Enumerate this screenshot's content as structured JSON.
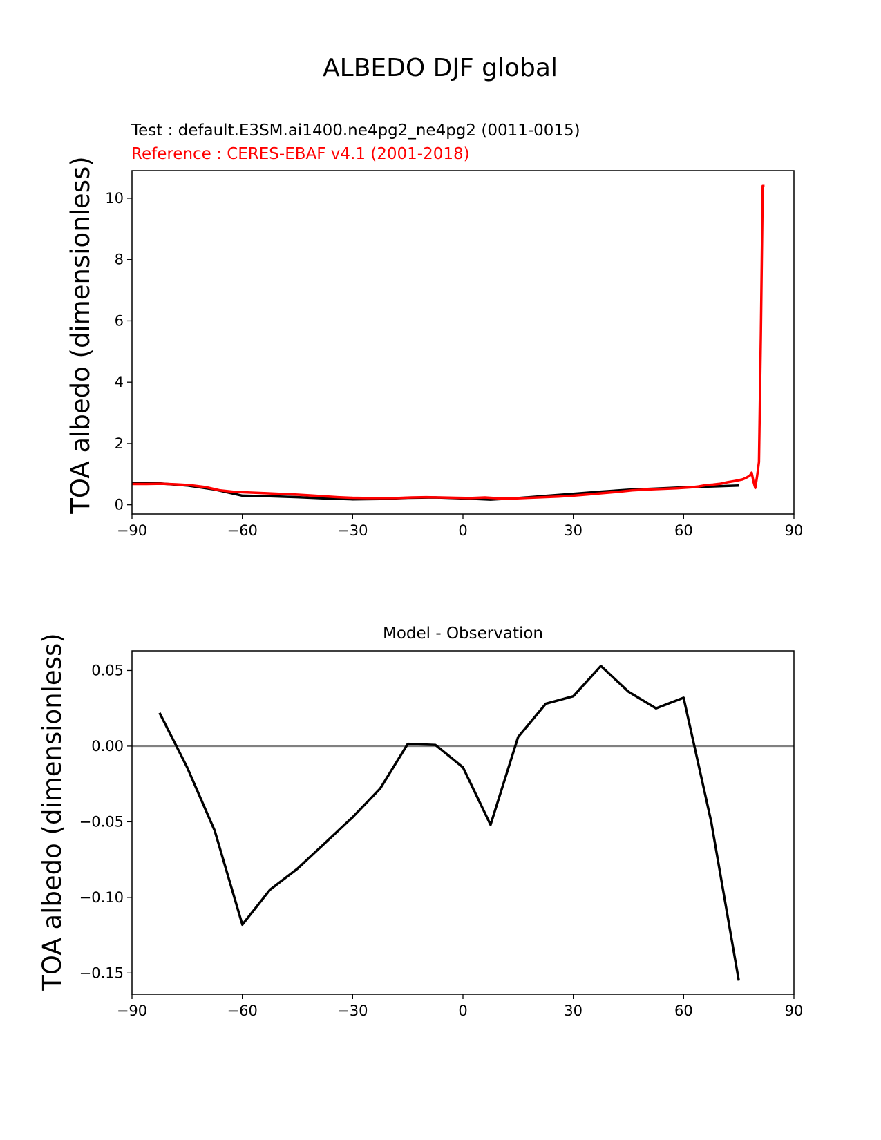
{
  "figure": {
    "suptitle": "ALBEDO DJF global",
    "colors": {
      "test": "#000000",
      "reference": "#ff0000",
      "zero_line": "#808080",
      "axes": "#000000"
    }
  },
  "chart_data": [
    {
      "type": "line",
      "test_label": "Test : default.E3SM.ai1400.ne4pg2_ne4pg2 (0011-0015)",
      "reference_label": "Reference : CERES-EBAF v4.1 (2001-2018)",
      "xlabel": "",
      "ylabel": "TOA albedo (dimensionless)",
      "xlim": [
        -90,
        90
      ],
      "ylim": [
        -0.3,
        10.9
      ],
      "xticks": [
        -90,
        -60,
        -30,
        0,
        30,
        60,
        90
      ],
      "xtick_labels": [
        "−90",
        "−60",
        "−30",
        "0",
        "30",
        "60",
        "90"
      ],
      "yticks": [
        0,
        2,
        4,
        6,
        8,
        10
      ],
      "ytick_labels": [
        "0",
        "2",
        "4",
        "6",
        "8",
        "10"
      ],
      "series": [
        {
          "name": "Test",
          "color": "#000000",
          "x": [
            -90,
            -82.5,
            -75,
            -67.5,
            -60,
            -52.5,
            -45,
            -37.5,
            -30,
            -22.5,
            -15,
            -7.5,
            0,
            7.5,
            15,
            22.5,
            30,
            37.5,
            45,
            52.5,
            60,
            67.5,
            75
          ],
          "y": [
            0.7,
            0.7,
            0.63,
            0.5,
            0.3,
            0.28,
            0.25,
            0.21,
            0.18,
            0.19,
            0.23,
            0.24,
            0.21,
            0.17,
            0.22,
            0.29,
            0.36,
            0.43,
            0.49,
            0.53,
            0.57,
            0.6,
            0.63
          ]
        },
        {
          "name": "Reference",
          "color": "#ff0000",
          "x": [
            -90,
            -86,
            -82,
            -78,
            -74,
            -70,
            -66,
            -62,
            -58,
            -54,
            -50,
            -46,
            -42,
            -38,
            -34,
            -30,
            -26,
            -22,
            -18,
            -14,
            -10,
            -6,
            -2,
            2,
            6,
            10,
            14,
            18,
            22,
            26,
            30,
            34,
            38,
            42,
            46,
            50,
            54,
            58,
            62,
            64,
            66,
            68,
            70,
            72,
            74,
            76,
            77,
            78,
            78.5,
            79,
            79.5,
            80,
            80.5,
            81,
            81.5,
            82
          ],
          "y": [
            0.68,
            0.68,
            0.69,
            0.67,
            0.64,
            0.58,
            0.47,
            0.42,
            0.4,
            0.38,
            0.36,
            0.34,
            0.31,
            0.28,
            0.25,
            0.23,
            0.22,
            0.22,
            0.22,
            0.24,
            0.25,
            0.24,
            0.23,
            0.22,
            0.24,
            0.21,
            0.21,
            0.23,
            0.25,
            0.27,
            0.3,
            0.34,
            0.38,
            0.42,
            0.47,
            0.5,
            0.52,
            0.54,
            0.57,
            0.6,
            0.64,
            0.66,
            0.69,
            0.74,
            0.78,
            0.83,
            0.88,
            0.95,
            1.05,
            0.75,
            0.55,
            0.95,
            1.4,
            5.5,
            10.4,
            10.4
          ]
        }
      ]
    },
    {
      "type": "line",
      "title": "Model - Observation",
      "xlabel": "",
      "ylabel": "TOA albedo (dimensionless)",
      "xlim": [
        -90,
        90
      ],
      "ylim": [
        -0.164,
        0.063
      ],
      "xticks": [
        -90,
        -60,
        -30,
        0,
        30,
        60,
        90
      ],
      "xtick_labels": [
        "−90",
        "−60",
        "−30",
        "0",
        "30",
        "60",
        "90"
      ],
      "yticks": [
        0.05,
        0.0,
        -0.05,
        -0.1,
        -0.15
      ],
      "ytick_labels": [
        "0.05",
        "0.00",
        "−0.05",
        "−0.10",
        "−0.15"
      ],
      "zero_line": true,
      "series": [
        {
          "name": "",
          "color": "#000000",
          "x": [
            -82.5,
            -75,
            -67.5,
            -60,
            -52.5,
            -45,
            -37.5,
            -30,
            -22.5,
            -15,
            -7.5,
            0,
            7.5,
            15,
            22.5,
            30,
            37.5,
            45,
            52.5,
            60,
            67.5,
            75
          ],
          "y": [
            0.022,
            -0.014,
            -0.056,
            -0.118,
            -0.095,
            -0.081,
            -0.064,
            -0.047,
            -0.028,
            0.0015,
            0.0008,
            -0.014,
            -0.052,
            0.006,
            0.028,
            0.033,
            0.053,
            0.036,
            0.025,
            0.032,
            -0.05,
            -0.155
          ]
        }
      ]
    }
  ]
}
